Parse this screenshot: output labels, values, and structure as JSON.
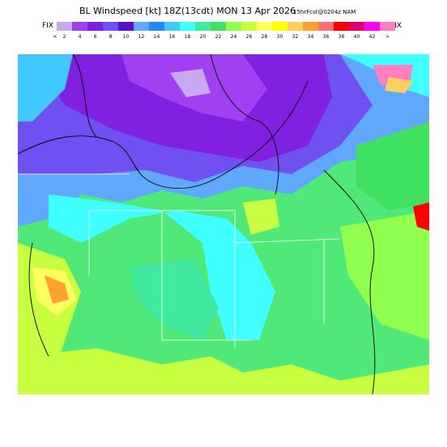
{
  "header": {
    "title": "BL Windspeed [kt] 18Z(13cdt) MON 13 Apr 2026",
    "subtitle": "15hrFcst@0204z NAM",
    "fix_left": "FIX",
    "fix_right": "FIX"
  },
  "legend": {
    "labels": [
      "<",
      2,
      4,
      6,
      8,
      10,
      12,
      14,
      16,
      18,
      20,
      22,
      24,
      26,
      28,
      30,
      32,
      34,
      36,
      38,
      40,
      42,
      ">"
    ],
    "colors": [
      "#c8a8f0",
      "#a040f0",
      "#8020e0",
      "#7050f0",
      "#5a10c8",
      "#60a8ff",
      "#2088ff",
      "#40c8ff",
      "#40ffff",
      "#40e8a0",
      "#40e060",
      "#90ff50",
      "#c8ff40",
      "#ffff60",
      "#ffff00",
      "#ffd060",
      "#ffa030",
      "#ff7070",
      "#ff0000",
      "#e00070",
      "#ff00ff",
      "#ff80c0"
    ]
  }
}
